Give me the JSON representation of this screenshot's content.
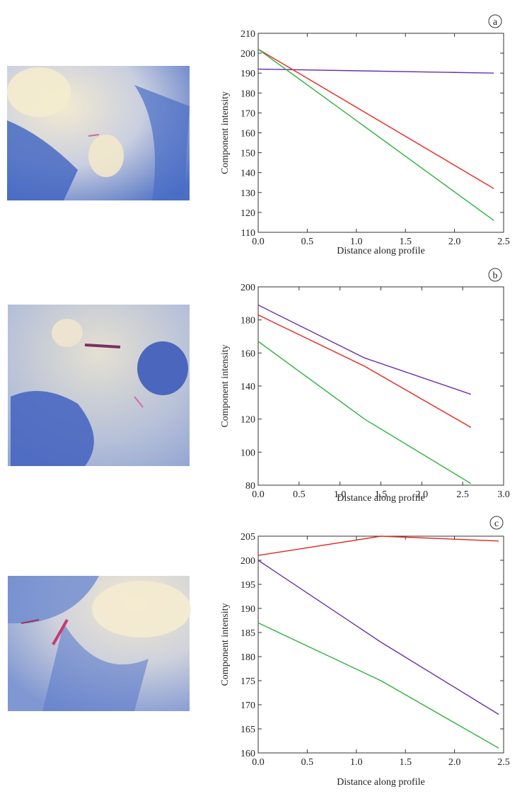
{
  "chart_data": [
    {
      "type": "line",
      "label": "a",
      "x_label": "Distance along profile",
      "y_label": "Component intensity",
      "xlim": [
        0,
        2.5
      ],
      "xticks": [
        {
          "value": 0,
          "label": "0.0"
        },
        0.5,
        {
          "value": 1,
          "label": "1.0"
        },
        1.5,
        {
          "value": 2,
          "label": "2.0"
        },
        2.5
      ],
      "ylim": [
        110,
        210
      ],
      "yticks": [
        110,
        120,
        130,
        140,
        150,
        160,
        170,
        180,
        190,
        200,
        210
      ],
      "x": [
        0,
        2.4
      ],
      "series": [
        {
          "color": "#6a2fb0",
          "values": [
            192,
            190
          ]
        },
        {
          "color": "#e8241c",
          "values": [
            202,
            132
          ]
        },
        {
          "color": "#2db33a",
          "values": [
            202,
            116
          ]
        }
      ]
    },
    {
      "type": "line",
      "label": "b",
      "x_label": "Distance along profile",
      "y_label": "Component intensity",
      "xlim": [
        0,
        3
      ],
      "xticks": [
        {
          "value": 0,
          "label": "0.0"
        },
        0.5,
        {
          "value": 1,
          "label": "1.0"
        },
        1.5,
        {
          "value": 2,
          "label": "2.0"
        },
        2.5,
        {
          "value": 3,
          "label": "3.0"
        }
      ],
      "ylim": [
        80,
        200
      ],
      "yticks": [
        80,
        100,
        120,
        140,
        160,
        180,
        200
      ],
      "x": [
        0,
        1.3,
        2.6
      ],
      "series": [
        {
          "color": "#6a2fb0",
          "values": [
            189,
            157,
            135
          ]
        },
        {
          "color": "#e8241c",
          "values": [
            183,
            152,
            115
          ]
        },
        {
          "color": "#2db33a",
          "values": [
            167,
            120,
            81
          ]
        }
      ]
    },
    {
      "type": "line",
      "label": "c",
      "x_label": "Distance along profile",
      "y_label": "Component intensity",
      "xlim": [
        0,
        2.5
      ],
      "xticks": [
        {
          "value": 0,
          "label": "0.0"
        },
        0.5,
        {
          "value": 1,
          "label": "1.0"
        },
        1.5,
        {
          "value": 2,
          "label": "2.0"
        },
        2.5
      ],
      "ylim": [
        160,
        205
      ],
      "yticks": [
        160,
        165,
        170,
        175,
        180,
        185,
        190,
        195,
        200,
        205
      ],
      "x": [
        0,
        1.25,
        2.45
      ],
      "series": [
        {
          "color": "#e8241c",
          "values": [
            201,
            205,
            204
          ]
        },
        {
          "color": "#6a2fb0",
          "values": [
            200,
            183,
            168
          ]
        },
        {
          "color": "#2db33a",
          "values": [
            187,
            175,
            161
          ]
        }
      ]
    }
  ]
}
